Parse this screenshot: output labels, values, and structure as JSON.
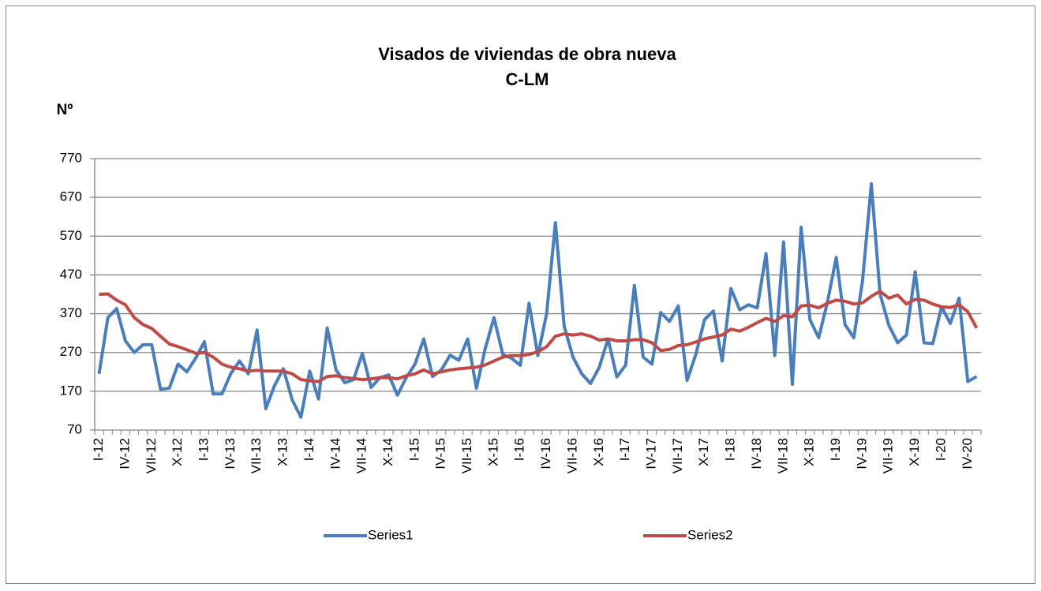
{
  "chart_data": {
    "type": "line",
    "title": "Visados de viviendas de obra nueva",
    "subtitle": "C-LM",
    "y_label": "Nº",
    "categories": [
      "I-12",
      null,
      null,
      "IV-12",
      null,
      null,
      "VII-12",
      null,
      null,
      "X-12",
      null,
      null,
      "I-13",
      null,
      null,
      "IV-13",
      null,
      null,
      "VII-13",
      null,
      null,
      "X-13",
      null,
      null,
      "I-14",
      null,
      null,
      "IV-14",
      null,
      null,
      "VII-14",
      null,
      null,
      "X-14",
      null,
      null,
      "I-15",
      null,
      null,
      "IV-15",
      null,
      null,
      "VII-15",
      null,
      null,
      "X-15",
      null,
      null,
      "I-16",
      null,
      null,
      "IV-16",
      null,
      null,
      "VII-16",
      null,
      null,
      "X-16",
      null,
      null,
      "I-17",
      null,
      null,
      "IV-17",
      null,
      null,
      "VII-17",
      null,
      null,
      "X-17",
      null,
      null,
      "I-18",
      null,
      null,
      "IV-18",
      null,
      null,
      "VII-18",
      null,
      null,
      "X-18",
      null,
      null,
      "I-19",
      null,
      null,
      "IV-19",
      null,
      null,
      "VII-19",
      null,
      null,
      "X-19",
      null,
      null,
      "I-20",
      null,
      null,
      "IV-20",
      null
    ],
    "series": [
      {
        "name": "Series1",
        "color": "#4a7ebb",
        "values": [
          215,
          360,
          383,
          300,
          270,
          290,
          290,
          175,
          178,
          240,
          220,
          255,
          298,
          163,
          163,
          215,
          248,
          215,
          328,
          125,
          185,
          228,
          148,
          103,
          222,
          150,
          333,
          225,
          192,
          200,
          268,
          180,
          205,
          212,
          160,
          205,
          240,
          305,
          208,
          225,
          263,
          250,
          305,
          178,
          280,
          360,
          265,
          255,
          237,
          397,
          262,
          370,
          605,
          338,
          258,
          215,
          190,
          232,
          305,
          207,
          237,
          443,
          258,
          240,
          373,
          350,
          390,
          198,
          265,
          355,
          377,
          248,
          435,
          380,
          393,
          385,
          525,
          262,
          555,
          188,
          593,
          355,
          308,
          400,
          515,
          342,
          308,
          455,
          705,
          420,
          340,
          295,
          315,
          478,
          295,
          293,
          388,
          345,
          410,
          195,
          208
        ]
      },
      {
        "name": "Series2",
        "color": "#be4b48",
        "values": [
          420,
          421,
          405,
          393,
          360,
          342,
          332,
          312,
          292,
          285,
          277,
          268,
          270,
          258,
          240,
          232,
          228,
          222,
          224,
          222,
          222,
          222,
          215,
          200,
          197,
          195,
          208,
          210,
          205,
          203,
          200,
          202,
          205,
          205,
          202,
          210,
          215,
          225,
          215,
          220,
          225,
          228,
          230,
          232,
          238,
          248,
          258,
          262,
          262,
          265,
          272,
          285,
          312,
          318,
          315,
          318,
          312,
          302,
          305,
          300,
          300,
          303,
          303,
          295,
          275,
          278,
          288,
          290,
          297,
          305,
          310,
          315,
          330,
          325,
          335,
          347,
          358,
          350,
          365,
          362,
          390,
          392,
          385,
          397,
          405,
          402,
          395,
          398,
          415,
          428,
          410,
          418,
          395,
          407,
          405,
          395,
          388,
          386,
          393,
          375,
          333
        ]
      }
    ],
    "ylim": [
      70,
      770
    ],
    "yticks": [
      70,
      170,
      270,
      370,
      470,
      570,
      670,
      770
    ],
    "grid": true,
    "legend": "bottom"
  }
}
